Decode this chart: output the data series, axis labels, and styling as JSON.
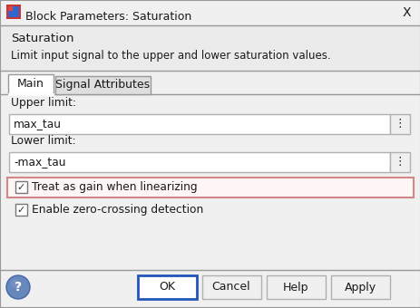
{
  "title_bar_text": "Block Parameters: Saturation",
  "close_button": "X",
  "section_title": "Saturation",
  "section_desc": "Limit input signal to the upper and lower saturation values.",
  "tab1": "Main",
  "tab2": "Signal Attributes",
  "upper_limit_label": "Upper limit:",
  "upper_limit_value": "max_tau",
  "lower_limit_label": "Lower limit:",
  "lower_limit_value": "-max_tau",
  "checkbox1_text": "Treat as gain when linearizing",
  "checkbox2_text": "Enable zero-crossing detection",
  "btn_ok": "OK",
  "btn_cancel": "Cancel",
  "btn_help": "Help",
  "btn_apply": "Apply",
  "bg_color": "#f0f0f0",
  "white": "#ffffff",
  "dialog_border": "#999999",
  "section_bg": "#ebebeb",
  "tab_inactive_bg": "#dedede",
  "highlight_border": "#d08888",
  "highlight_fill": "#fef5f5",
  "input_border": "#b0b0b0",
  "btn_border": "#b0b0b0",
  "ok_border": "#2255bb",
  "text_dark": "#1a1a1a",
  "help_icon_bg": "#6688bb"
}
